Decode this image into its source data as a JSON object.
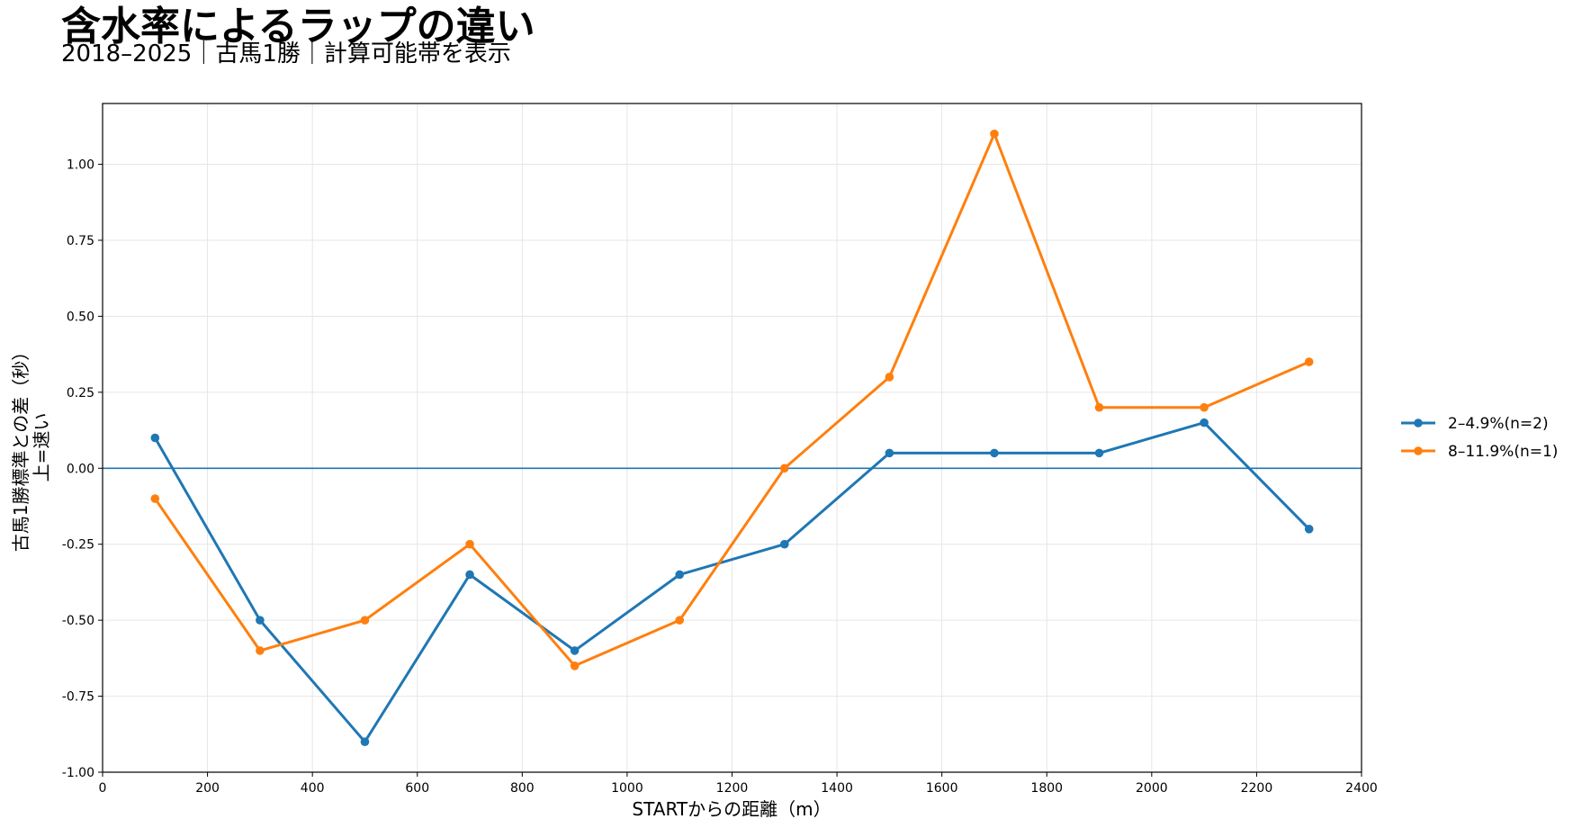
{
  "chart_data": {
    "type": "line",
    "title": "含水率によるラップの違い",
    "subtitle": "2018–2025｜古馬1勝｜計算可能帯を表示",
    "xlabel": "STARTからの距離（m）",
    "ylabel": "古馬1勝標準との差（秒）",
    "ylabel2": "上=速い",
    "xlim": [
      0,
      2400
    ],
    "ylim": [
      -1.0,
      1.2
    ],
    "xticks": [
      0,
      200,
      400,
      600,
      800,
      1000,
      1200,
      1400,
      1600,
      1800,
      2000,
      2200,
      2400
    ],
    "xtick_labels": [
      "0",
      "200",
      "400",
      "600",
      "800",
      "1000",
      "1200",
      "1400",
      "1600",
      "1800",
      "2000",
      "2200",
      "2400"
    ],
    "yticks": [
      -1.0,
      -0.75,
      -0.5,
      -0.25,
      0.0,
      0.25,
      0.5,
      0.75,
      1.0
    ],
    "ytick_labels": [
      "-1.00",
      "-0.75",
      "-0.50",
      "-0.25",
      "0.00",
      "0.25",
      "0.50",
      "0.75",
      "1.00"
    ],
    "grid": true,
    "reference_line_y": 0,
    "legend_position": "right",
    "series": [
      {
        "name": "2–4.9%(n=2)",
        "color": "#1f77b4",
        "x": [
          100,
          300,
          500,
          700,
          900,
          1100,
          1300,
          1500,
          1700,
          1900,
          2100,
          2300
        ],
        "y": [
          0.1,
          -0.5,
          -0.9,
          -0.35,
          -0.6,
          -0.35,
          -0.25,
          0.05,
          0.05,
          0.05,
          0.15,
          -0.2
        ]
      },
      {
        "name": "8–11.9%(n=1)",
        "color": "#ff7f0e",
        "x": [
          100,
          300,
          500,
          700,
          900,
          1100,
          1300,
          1500,
          1700,
          1900,
          2100,
          2300
        ],
        "y": [
          -0.1,
          -0.6,
          -0.5,
          -0.25,
          -0.65,
          -0.5,
          0.0,
          0.3,
          1.1,
          0.2,
          0.2,
          0.35
        ]
      }
    ]
  }
}
